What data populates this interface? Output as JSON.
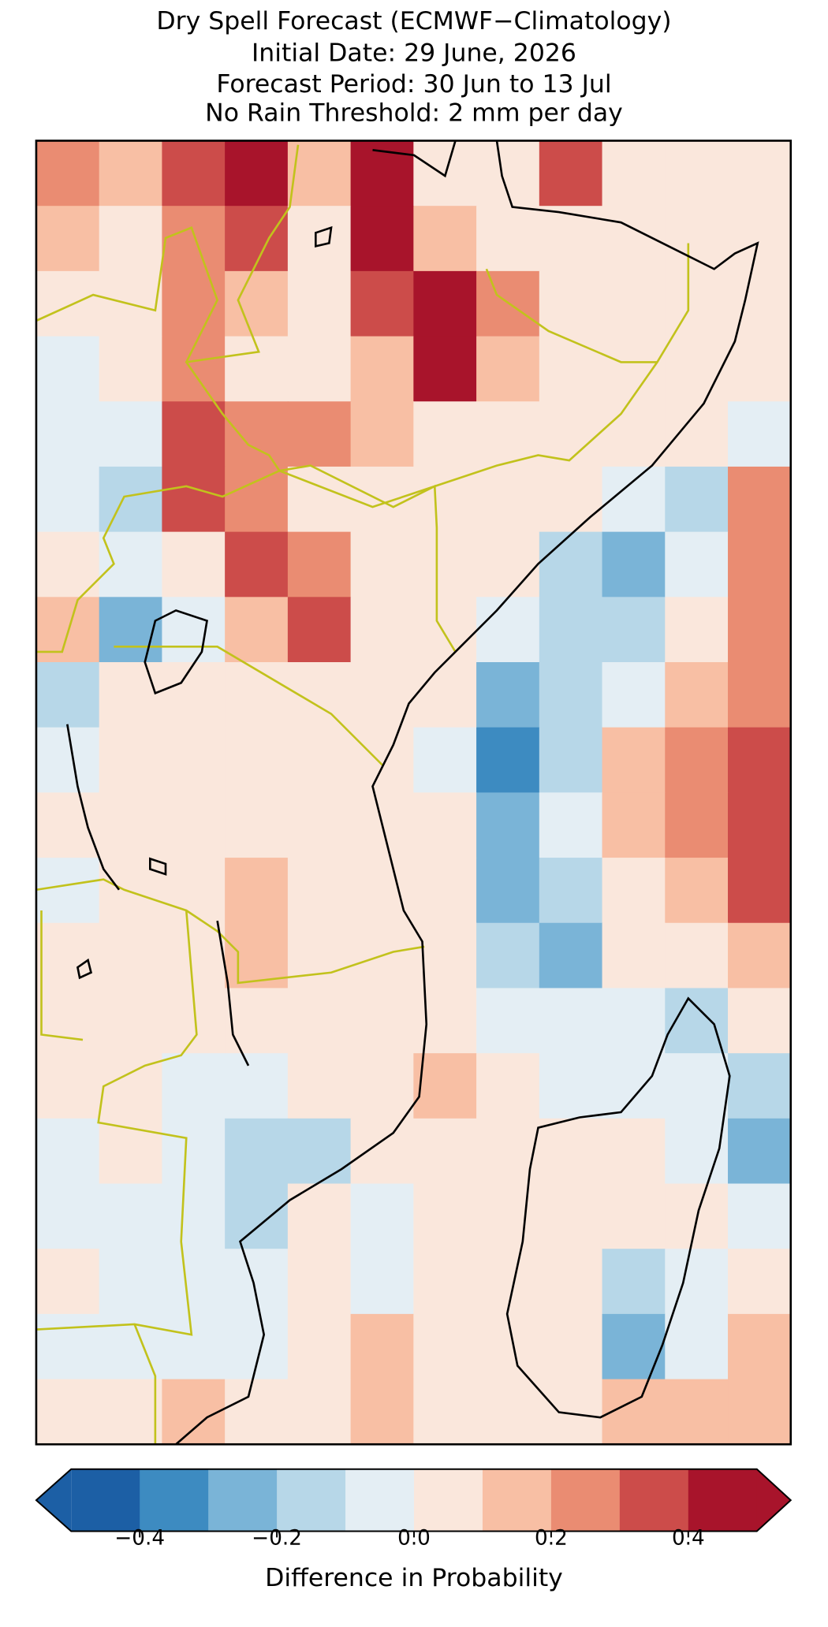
{
  "title": [
    "Dry Spell Forecast (ECMWF−Climatology)",
    "Initial Date: 29 June, 2026",
    "Forecast Period: 30 Jun to 13 Jul",
    "No Rain Threshold: 2 mm per day"
  ],
  "field": {
    "values": [
      [
        0.25,
        0.15,
        0.35,
        0.45,
        0.15,
        0.45,
        0.05,
        0.05,
        0.35,
        0.05,
        0.05,
        0.05
      ],
      [
        0.15,
        0.05,
        0.25,
        0.35,
        0.05,
        0.45,
        0.15,
        0.05,
        0.05,
        0.05,
        0.05,
        0.05
      ],
      [
        0.05,
        0.05,
        0.25,
        0.15,
        0.05,
        0.35,
        0.45,
        0.25,
        0.05,
        0.05,
        0.05,
        0.05
      ],
      [
        -0.05,
        0.05,
        0.25,
        0.05,
        0.05,
        0.15,
        0.45,
        0.15,
        0.05,
        0.05,
        0.05,
        0.05
      ],
      [
        -0.05,
        -0.05,
        0.35,
        0.25,
        0.25,
        0.15,
        0.05,
        0.05,
        0.05,
        0.05,
        0.05,
        -0.05
      ],
      [
        -0.05,
        -0.15,
        0.35,
        0.25,
        0.05,
        0.05,
        0.05,
        0.05,
        0.05,
        -0.05,
        -0.15,
        0.25
      ],
      [
        0.05,
        -0.05,
        0.05,
        0.35,
        0.25,
        0.05,
        0.05,
        0.05,
        -0.15,
        -0.25,
        -0.05,
        0.25
      ],
      [
        0.15,
        -0.25,
        -0.05,
        0.15,
        0.35,
        0.05,
        0.05,
        -0.05,
        -0.15,
        -0.15,
        0.05,
        0.25
      ],
      [
        -0.15,
        0.05,
        0.05,
        0.05,
        0.05,
        0.05,
        0.05,
        -0.25,
        -0.15,
        -0.05,
        0.15,
        0.25
      ],
      [
        -0.05,
        0.05,
        0.05,
        0.05,
        0.05,
        0.05,
        -0.05,
        -0.35,
        -0.15,
        0.15,
        0.25,
        0.35
      ],
      [
        0.05,
        0.05,
        0.05,
        0.05,
        0.05,
        0.05,
        0.05,
        -0.25,
        -0.05,
        0.15,
        0.25,
        0.35
      ],
      [
        -0.05,
        0.05,
        0.05,
        0.15,
        0.05,
        0.05,
        0.05,
        -0.25,
        -0.15,
        0.05,
        0.15,
        0.35
      ],
      [
        0.05,
        0.05,
        0.05,
        0.15,
        0.05,
        0.05,
        0.05,
        -0.15,
        -0.25,
        0.05,
        0.05,
        0.15
      ],
      [
        0.05,
        0.05,
        0.05,
        0.05,
        0.05,
        0.05,
        0.05,
        -0.05,
        -0.05,
        -0.05,
        -0.15,
        0.05
      ],
      [
        0.05,
        0.05,
        -0.05,
        -0.05,
        0.05,
        0.05,
        0.15,
        0.05,
        -0.05,
        -0.05,
        -0.05,
        -0.15
      ],
      [
        -0.05,
        0.05,
        -0.05,
        -0.15,
        -0.15,
        0.05,
        0.05,
        0.05,
        0.05,
        0.05,
        -0.05,
        -0.25
      ],
      [
        -0.05,
        -0.05,
        -0.05,
        -0.15,
        0.05,
        -0.05,
        0.05,
        0.05,
        0.05,
        0.05,
        0.05,
        -0.05
      ],
      [
        0.05,
        -0.05,
        -0.05,
        -0.05,
        0.05,
        -0.05,
        0.05,
        0.05,
        0.05,
        -0.15,
        -0.05,
        0.05
      ],
      [
        -0.05,
        -0.05,
        -0.05,
        -0.05,
        0.05,
        0.15,
        0.05,
        0.05,
        0.05,
        -0.25,
        -0.05,
        0.15
      ],
      [
        0.05,
        0.05,
        0.15,
        0.05,
        0.05,
        0.15,
        0.05,
        0.05,
        0.05,
        0.15,
        0.15,
        0.15
      ]
    ]
  },
  "colorbar": {
    "label": "Difference in Probability",
    "lim": [
      -0.5,
      0.5
    ],
    "levels": [
      -0.5,
      -0.4,
      -0.3,
      -0.2,
      -0.1,
      0,
      0.1,
      0.2,
      0.3,
      0.4,
      0.5
    ],
    "colors": [
      "#1c5fa5",
      "#3d8bc1",
      "#7ab4d7",
      "#b7d7e8",
      "#e4eef4",
      "#fae7dc",
      "#f8bfa4",
      "#ea8c72",
      "#cc4c4a",
      "#a8142b"
    ],
    "extend": "both",
    "ticks": [
      {
        "value": -0.4,
        "label": "−0.4"
      },
      {
        "value": -0.2,
        "label": "−0.2"
      },
      {
        "value": 0,
        "label": "0.0"
      },
      {
        "value": 0.2,
        "label": "0.2"
      },
      {
        "value": 0.4,
        "label": "0.4"
      }
    ]
  }
}
